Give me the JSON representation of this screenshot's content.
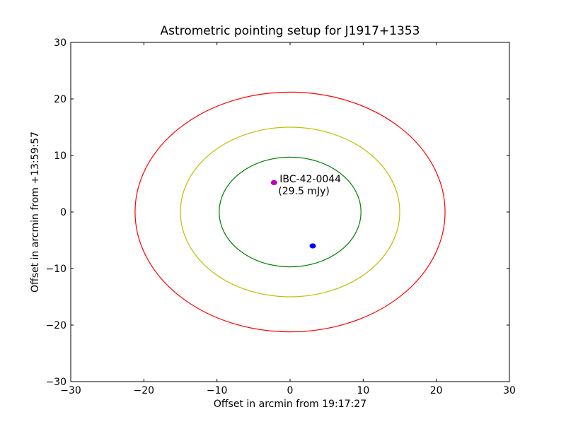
{
  "chart_data": {
    "type": "scatter",
    "title": "Astrometric pointing setup for J1917+1353",
    "xlabel": "Offset in arcmin from 19:17:27",
    "ylabel": "Offset in arcmin from +13:59:57",
    "xlim": [
      -30,
      30
    ],
    "ylim": [
      -30,
      30
    ],
    "xticks": [
      -30,
      -20,
      -10,
      0,
      10,
      20,
      30
    ],
    "yticks": [
      -30,
      -20,
      -10,
      0,
      10,
      20,
      30
    ],
    "tick_labels_x": [
      "−30",
      "−20",
      "−10",
      "0",
      "10",
      "20",
      "30"
    ],
    "tick_labels_y": [
      "−30",
      "−20",
      "−10",
      "0",
      "10",
      "20",
      "30"
    ],
    "grid": false,
    "circles": [
      {
        "radius": 21.2,
        "color": "#ff0000"
      },
      {
        "radius": 15.0,
        "color": "#bfbf00"
      },
      {
        "radius": 9.7,
        "color": "#008000"
      }
    ],
    "points": [
      {
        "x": -2.2,
        "y": 5.2,
        "color": "#bf00bf",
        "label_line1": "IBC-42-0044",
        "label_line2": " (29.5 mJy)"
      },
      {
        "x": 3.1,
        "y": -6.0,
        "color": "#0000ff",
        "label_line1": "",
        "label_line2": ""
      }
    ]
  }
}
